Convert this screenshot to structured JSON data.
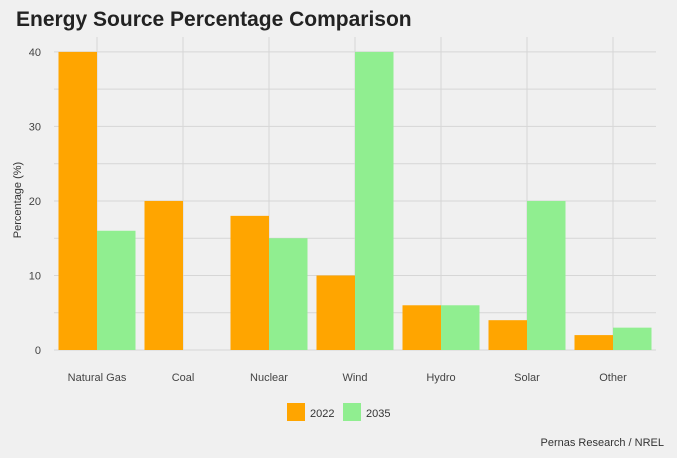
{
  "chart_data": {
    "type": "bar",
    "title": "Energy Source Percentage Comparison",
    "xlabel": "",
    "ylabel": "Percentage (%)",
    "categories": [
      "Natural Gas",
      "Coal",
      "Nuclear",
      "Wind",
      "Hydro",
      "Solar",
      "Other"
    ],
    "series": [
      {
        "name": "2022",
        "color": "#FFA500",
        "values": [
          40,
          20,
          18,
          10,
          6,
          4,
          2
        ]
      },
      {
        "name": "2035",
        "color": "#90EE90",
        "values": [
          16,
          0,
          15,
          40,
          6,
          20,
          3
        ]
      }
    ],
    "ylim": [
      0,
      42
    ],
    "yticks": [
      0,
      10,
      20,
      30,
      40
    ],
    "grid": true,
    "legend_position": "bottom",
    "caption": "Pernas Research / NREL"
  }
}
